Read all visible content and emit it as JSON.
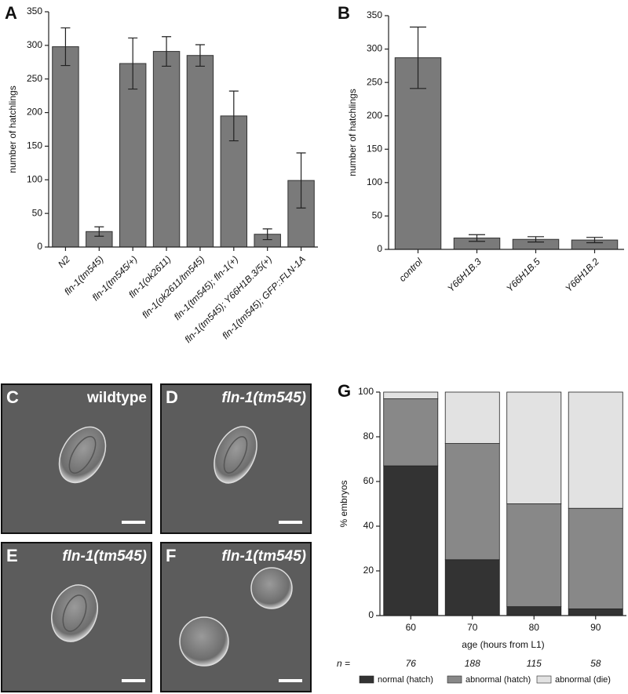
{
  "chart_data": [
    {
      "type": "bar",
      "panel": "A",
      "ylabel": "number of hatchlings",
      "color": "#7a7a7a",
      "categories": [
        "N2",
        "fln-1(tm545)",
        "fln-1(tm545/+)",
        "fln-1(ok2611)",
        "fln-1(ok2611/tm545)",
        "fln-1(tm545); fln-1(+)",
        "fln-1(tm545); Y66H1B.3/5(+)",
        "fln-1(tm545); GFP::FLN-1A"
      ],
      "values": [
        298,
        23,
        273,
        291,
        285,
        195,
        19,
        99
      ],
      "errors": [
        28,
        7,
        38,
        22,
        16,
        37,
        8,
        41
      ],
      "ylim": [
        0,
        350
      ],
      "yticks": [
        0,
        50,
        100,
        150,
        200,
        250,
        300,
        350
      ]
    },
    {
      "type": "bar",
      "panel": "B",
      "ylabel": "number of hatchlings",
      "color": "#7a7a7a",
      "categories": [
        "control",
        "Y66H1B.3",
        "Y66H1B.5",
        "Y66H1B.2"
      ],
      "values": [
        287,
        17,
        15,
        14
      ],
      "errors": [
        46,
        5,
        4,
        4
      ],
      "ylim": [
        0,
        350
      ],
      "yticks": [
        0,
        50,
        100,
        150,
        200,
        250,
        300,
        350
      ]
    },
    {
      "type": "stacked_bar",
      "panel": "G",
      "ylabel": "% embryos",
      "xlabel": "age (hours from L1)",
      "categories": [
        "60",
        "70",
        "80",
        "90"
      ],
      "n_label": "n =",
      "n_values": [
        76,
        188,
        115,
        58
      ],
      "series": [
        {
          "name": "normal (hatch)",
          "color": "#333333",
          "values": [
            67,
            25,
            4,
            3
          ]
        },
        {
          "name": "abnormal (hatch)",
          "color": "#888888",
          "values": [
            30,
            52,
            46,
            45
          ]
        },
        {
          "name": "abnormal (die)",
          "color": "#e2e2e2",
          "values": [
            3,
            23,
            50,
            52
          ]
        }
      ],
      "ylim": [
        0,
        100
      ],
      "yticks": [
        0,
        20,
        40,
        60,
        80,
        100
      ]
    }
  ],
  "images": [
    {
      "panel": "C",
      "label": "wildtype"
    },
    {
      "panel": "D",
      "label": "fln-1(tm545)"
    },
    {
      "panel": "E",
      "label": "fln-1(tm545)"
    },
    {
      "panel": "F",
      "label": "fln-1(tm545)"
    }
  ]
}
